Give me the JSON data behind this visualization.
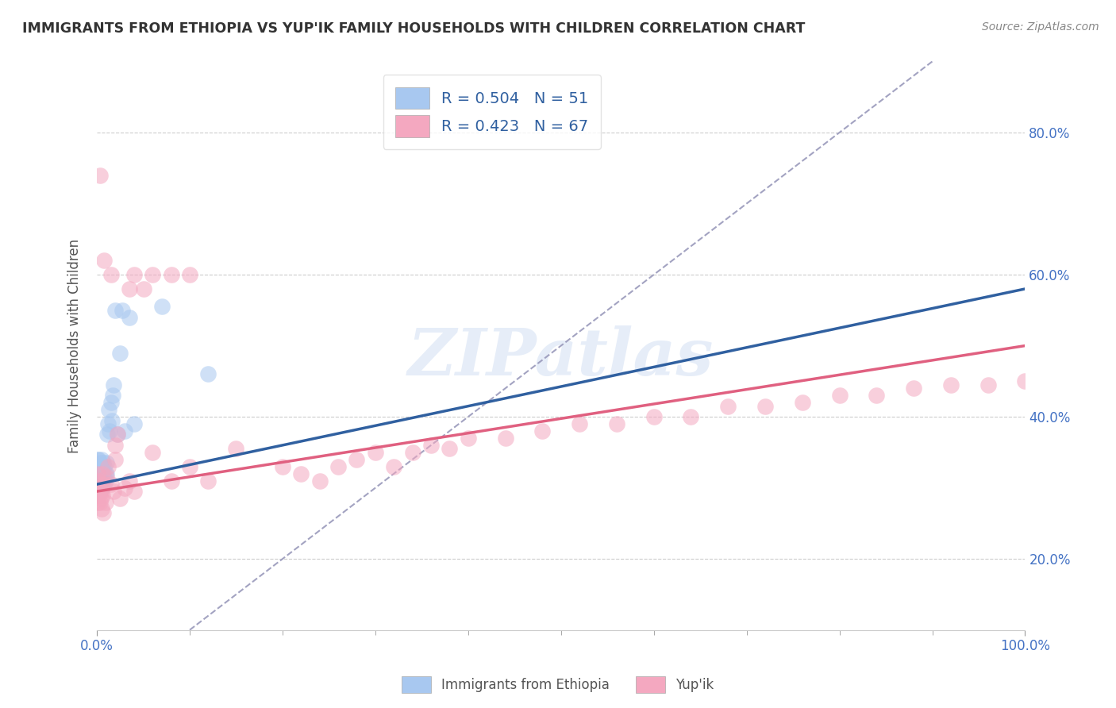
{
  "title": "IMMIGRANTS FROM ETHIOPIA VS YUP'IK FAMILY HOUSEHOLDS WITH CHILDREN CORRELATION CHART",
  "source": "Source: ZipAtlas.com",
  "ylabel": "Family Households with Children",
  "watermark": "ZIPatlas",
  "blue_color": "#A8C8F0",
  "pink_color": "#F4A8C0",
  "blue_line_color": "#3060A0",
  "pink_line_color": "#E06080",
  "dashed_line_color": "#9999BB",
  "title_color": "#333333",
  "axis_label_color": "#555555",
  "tick_color": "#4472C4",
  "grid_color": "#CCCCCC",
  "blue_scatter_x": [
    0.001,
    0.001,
    0.001,
    0.001,
    0.001,
    0.002,
    0.002,
    0.002,
    0.002,
    0.002,
    0.003,
    0.003,
    0.003,
    0.003,
    0.003,
    0.004,
    0.004,
    0.004,
    0.004,
    0.005,
    0.005,
    0.005,
    0.005,
    0.006,
    0.006,
    0.006,
    0.007,
    0.007,
    0.008,
    0.008,
    0.009,
    0.009,
    0.01,
    0.01,
    0.011,
    0.012,
    0.013,
    0.014,
    0.015,
    0.016,
    0.017,
    0.018,
    0.02,
    0.022,
    0.025,
    0.027,
    0.03,
    0.035,
    0.04,
    0.07,
    0.12
  ],
  "blue_scatter_y": [
    0.315,
    0.33,
    0.34,
    0.32,
    0.3,
    0.31,
    0.325,
    0.34,
    0.295,
    0.31,
    0.305,
    0.32,
    0.335,
    0.31,
    0.295,
    0.3,
    0.315,
    0.33,
    0.305,
    0.31,
    0.325,
    0.34,
    0.3,
    0.31,
    0.325,
    0.305,
    0.32,
    0.335,
    0.315,
    0.33,
    0.32,
    0.31,
    0.335,
    0.32,
    0.375,
    0.39,
    0.41,
    0.38,
    0.42,
    0.395,
    0.43,
    0.445,
    0.55,
    0.375,
    0.49,
    0.55,
    0.38,
    0.54,
    0.39,
    0.555,
    0.46
  ],
  "pink_scatter_x": [
    0.001,
    0.001,
    0.001,
    0.002,
    0.002,
    0.003,
    0.003,
    0.004,
    0.004,
    0.005,
    0.005,
    0.006,
    0.006,
    0.007,
    0.008,
    0.009,
    0.01,
    0.012,
    0.015,
    0.018,
    0.02,
    0.02,
    0.022,
    0.025,
    0.03,
    0.035,
    0.04,
    0.06,
    0.08,
    0.1,
    0.12,
    0.15,
    0.2,
    0.22,
    0.24,
    0.26,
    0.28,
    0.3,
    0.32,
    0.34,
    0.36,
    0.38,
    0.4,
    0.44,
    0.48,
    0.52,
    0.56,
    0.6,
    0.64,
    0.68,
    0.72,
    0.76,
    0.8,
    0.84,
    0.88,
    0.92,
    0.96,
    1.0,
    0.035,
    0.04,
    0.05,
    0.06,
    0.08,
    0.1,
    0.015,
    0.008,
    0.003
  ],
  "pink_scatter_y": [
    0.3,
    0.32,
    0.28,
    0.31,
    0.29,
    0.28,
    0.295,
    0.3,
    0.285,
    0.295,
    0.27,
    0.29,
    0.32,
    0.265,
    0.305,
    0.28,
    0.315,
    0.33,
    0.305,
    0.295,
    0.34,
    0.36,
    0.375,
    0.285,
    0.3,
    0.31,
    0.295,
    0.35,
    0.31,
    0.33,
    0.31,
    0.355,
    0.33,
    0.32,
    0.31,
    0.33,
    0.34,
    0.35,
    0.33,
    0.35,
    0.36,
    0.355,
    0.37,
    0.37,
    0.38,
    0.39,
    0.39,
    0.4,
    0.4,
    0.415,
    0.415,
    0.42,
    0.43,
    0.43,
    0.44,
    0.445,
    0.445,
    0.45,
    0.58,
    0.6,
    0.58,
    0.6,
    0.6,
    0.6,
    0.6,
    0.62,
    0.74
  ],
  "xlim": [
    0.0,
    1.0
  ],
  "ylim": [
    0.1,
    0.9
  ],
  "blue_trend": [
    0.305,
    0.58
  ],
  "pink_trend": [
    0.295,
    0.5
  ],
  "dashed_trend": [
    0.1,
    0.9
  ],
  "xtick_major": [
    0.0,
    1.0
  ],
  "xtick_minor_step": 0.1,
  "ytick_positions": [
    0.2,
    0.4,
    0.6,
    0.8
  ]
}
